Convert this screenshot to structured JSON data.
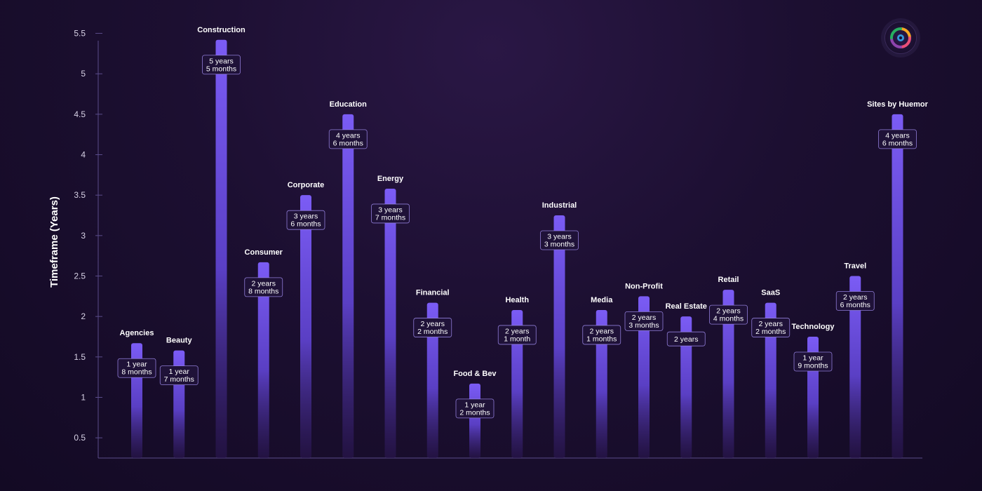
{
  "chart_data": {
    "type": "bar",
    "ylabel": "Timeframe (Years)",
    "ylim": [
      0.25,
      5.6
    ],
    "yticks": [
      0.5,
      1,
      1.5,
      2,
      2.5,
      3,
      3.5,
      4,
      4.5,
      5,
      5.5
    ],
    "grid": false,
    "categories": [
      "Agencies",
      "Beauty",
      "Construction",
      "Consumer",
      "Corporate",
      "Education",
      "Energy",
      "Financial",
      "Food & Bev",
      "Health",
      "Industrial",
      "Media",
      "Non-Profit",
      "Real Estate",
      "Retail",
      "SaaS",
      "Technology",
      "Travel",
      "Sites by Huemor"
    ],
    "values": [
      1.67,
      1.58,
      5.42,
      2.67,
      3.5,
      4.5,
      3.58,
      2.17,
      1.17,
      2.08,
      3.25,
      2.08,
      2.25,
      2.0,
      2.33,
      2.17,
      1.75,
      2.5,
      4.5
    ],
    "value_labels": [
      [
        "1 year",
        "8 months"
      ],
      [
        "1 year",
        "7 months"
      ],
      [
        "5 years",
        "5 months"
      ],
      [
        "2 years",
        "8 months"
      ],
      [
        "3 years",
        "6 months"
      ],
      [
        "4 years",
        "6 months"
      ],
      [
        "3 years",
        "7 months"
      ],
      [
        "2 years",
        "2 months"
      ],
      [
        "1 year",
        "2 months"
      ],
      [
        "2 years",
        "1 month"
      ],
      [
        "3 years",
        "3 months"
      ],
      [
        "2 years",
        "1 months"
      ],
      [
        "2 years",
        "3 months"
      ],
      [
        "2 years"
      ],
      [
        "2 years",
        "4 months"
      ],
      [
        "2 years",
        "2 months"
      ],
      [
        "1 year",
        "9 months"
      ],
      [
        "2 years",
        "6 months"
      ],
      [
        "4 years",
        "6 months"
      ]
    ],
    "colors": {
      "bar_top": "#7b5cf5",
      "bar_bottom": "#2a1650",
      "label_bg": "#1f1238",
      "label_border": "#8f7cd6",
      "axis": "#5a4c8a"
    }
  },
  "logo": {
    "icon": "huemor-logo-icon"
  }
}
